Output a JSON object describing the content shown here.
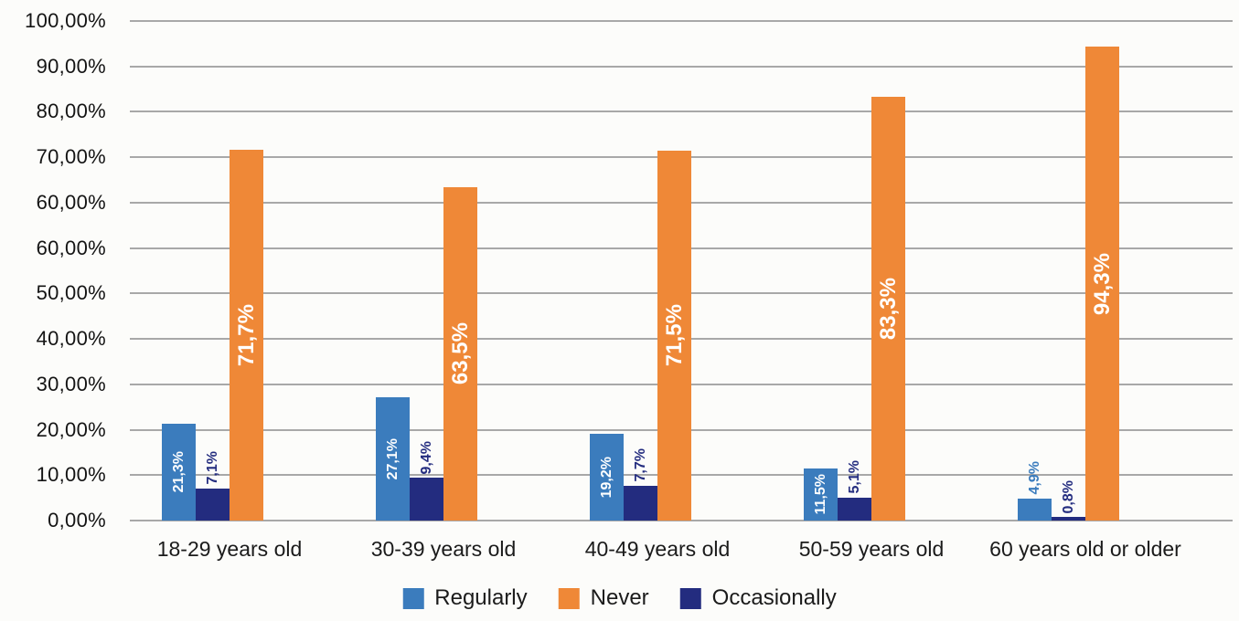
{
  "chart_data": {
    "type": "bar",
    "title": "",
    "xlabel": "",
    "ylabel": "",
    "categories": [
      "18-29 years old",
      "30-39 years old",
      "40-49 years old",
      "50-59 years old",
      "60 years old or older"
    ],
    "series": [
      {
        "name": "Regularly",
        "color": "#3B7CBD",
        "values": [
          21.3,
          27.1,
          19.2,
          11.5,
          4.9
        ],
        "data_labels": [
          "21,3%",
          "27,1%",
          "19,2%",
          "11,5%",
          "4,9%"
        ]
      },
      {
        "name": "Occasionally",
        "color": "#232C7F",
        "values": [
          7.1,
          9.4,
          7.7,
          5.1,
          0.8
        ],
        "data_labels": [
          "7,1%",
          "9,4%",
          "7,7%",
          "5,1%",
          "0,8%"
        ]
      },
      {
        "name": "Never",
        "color": "#EF8837",
        "values": [
          71.7,
          63.5,
          71.5,
          83.3,
          94.3
        ],
        "data_labels": [
          "71,7%",
          "63,5%",
          "71,5%",
          "83,3%",
          "94,3%"
        ]
      }
    ],
    "bar_group_order": [
      "Regularly",
      "Occasionally",
      "Never"
    ],
    "y_axis": {
      "ticks_top_to_bottom": [
        "100,00%",
        "90,00%",
        "80,00%",
        "70,00%",
        "60,00%",
        "60,00%",
        "50,00%",
        "40,00%",
        "30,00%",
        "20,00%",
        "10,00%",
        "0,00%"
      ],
      "grid": true
    },
    "legend": {
      "position": "bottom",
      "items": [
        {
          "label": "Regularly",
          "color": "#3B7CBD"
        },
        {
          "label": "Never",
          "color": "#EF8837"
        },
        {
          "label": "Occasionally",
          "color": "#232C7F"
        }
      ]
    },
    "colors": {
      "gridline": "#a8a8a8",
      "background": "#fcfcfa",
      "axis_text": "#141414",
      "inside_label_text": "#ffffff"
    }
  }
}
